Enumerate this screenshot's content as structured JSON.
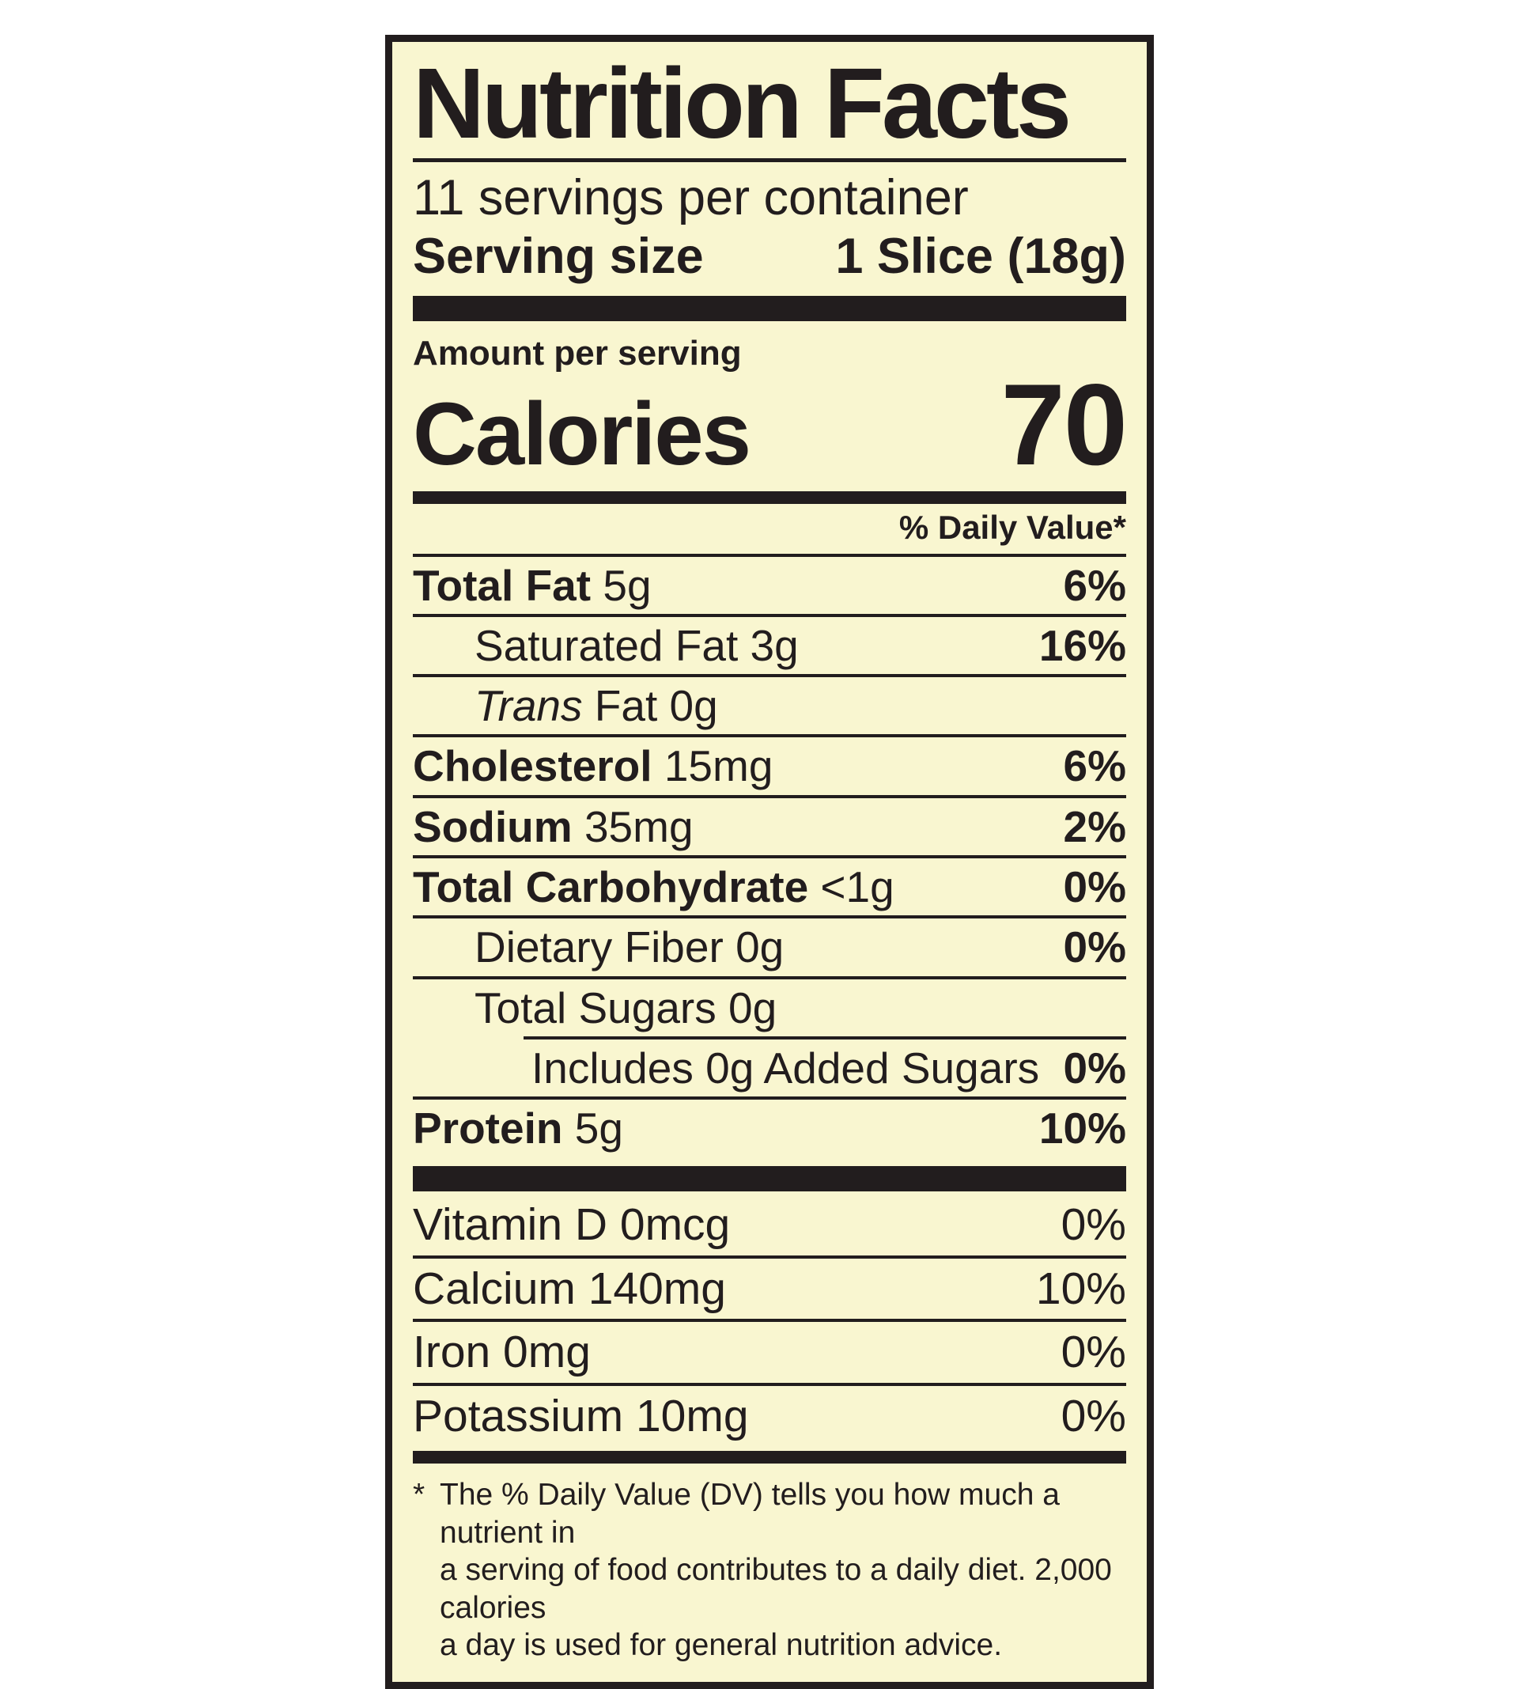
{
  "colors": {
    "label_background": "#f9f6d0",
    "ink": "#221d1e",
    "page_background": "#ffffff"
  },
  "label": {
    "title": "Nutrition Facts",
    "servings_per_container": "11 servings per container",
    "serving_size_label": "Serving size",
    "serving_size_value": "1 Slice (18g)",
    "amount_per_serving": "Amount per serving",
    "calories_label": "Calories",
    "calories_value": "70",
    "daily_value_header": "% Daily Value*",
    "rows": [
      {
        "bold": "Total Fat",
        "rest": " 5g",
        "dv": "6%"
      },
      {
        "rest": "Saturated Fat 3g",
        "dv": "16%"
      },
      {
        "italic": "Trans",
        "rest": " Fat 0g"
      },
      {
        "bold": "Cholesterol",
        "rest": " 15mg",
        "dv": "6%"
      },
      {
        "bold": "Sodium",
        "rest": " 35mg",
        "dv": "2%"
      },
      {
        "bold": "Total Carbohydrate",
        "rest": " <1g",
        "dv": "0%"
      },
      {
        "rest": "Dietary Fiber 0g",
        "dv": "0%"
      },
      {
        "rest": "Total Sugars 0g"
      },
      {
        "rest": "Includes 0g Added Sugars",
        "dv": "0%"
      },
      {
        "bold": "Protein",
        "rest": " 5g",
        "dv": "10%"
      }
    ],
    "micros": [
      {
        "rest": "Vitamin D 0mcg",
        "dv": "0%"
      },
      {
        "rest": "Calcium 140mg",
        "dv": "10%"
      },
      {
        "rest": "Iron 0mg",
        "dv": "0%"
      },
      {
        "rest": "Potassium 10mg",
        "dv": "0%"
      }
    ],
    "footnote": {
      "marker": "*",
      "lines": [
        "The % Daily Value (DV) tells you how much a nutrient in",
        "a serving of food contributes to a daily diet. 2,000 calories",
        "a day is used for general nutrition advice."
      ]
    }
  }
}
